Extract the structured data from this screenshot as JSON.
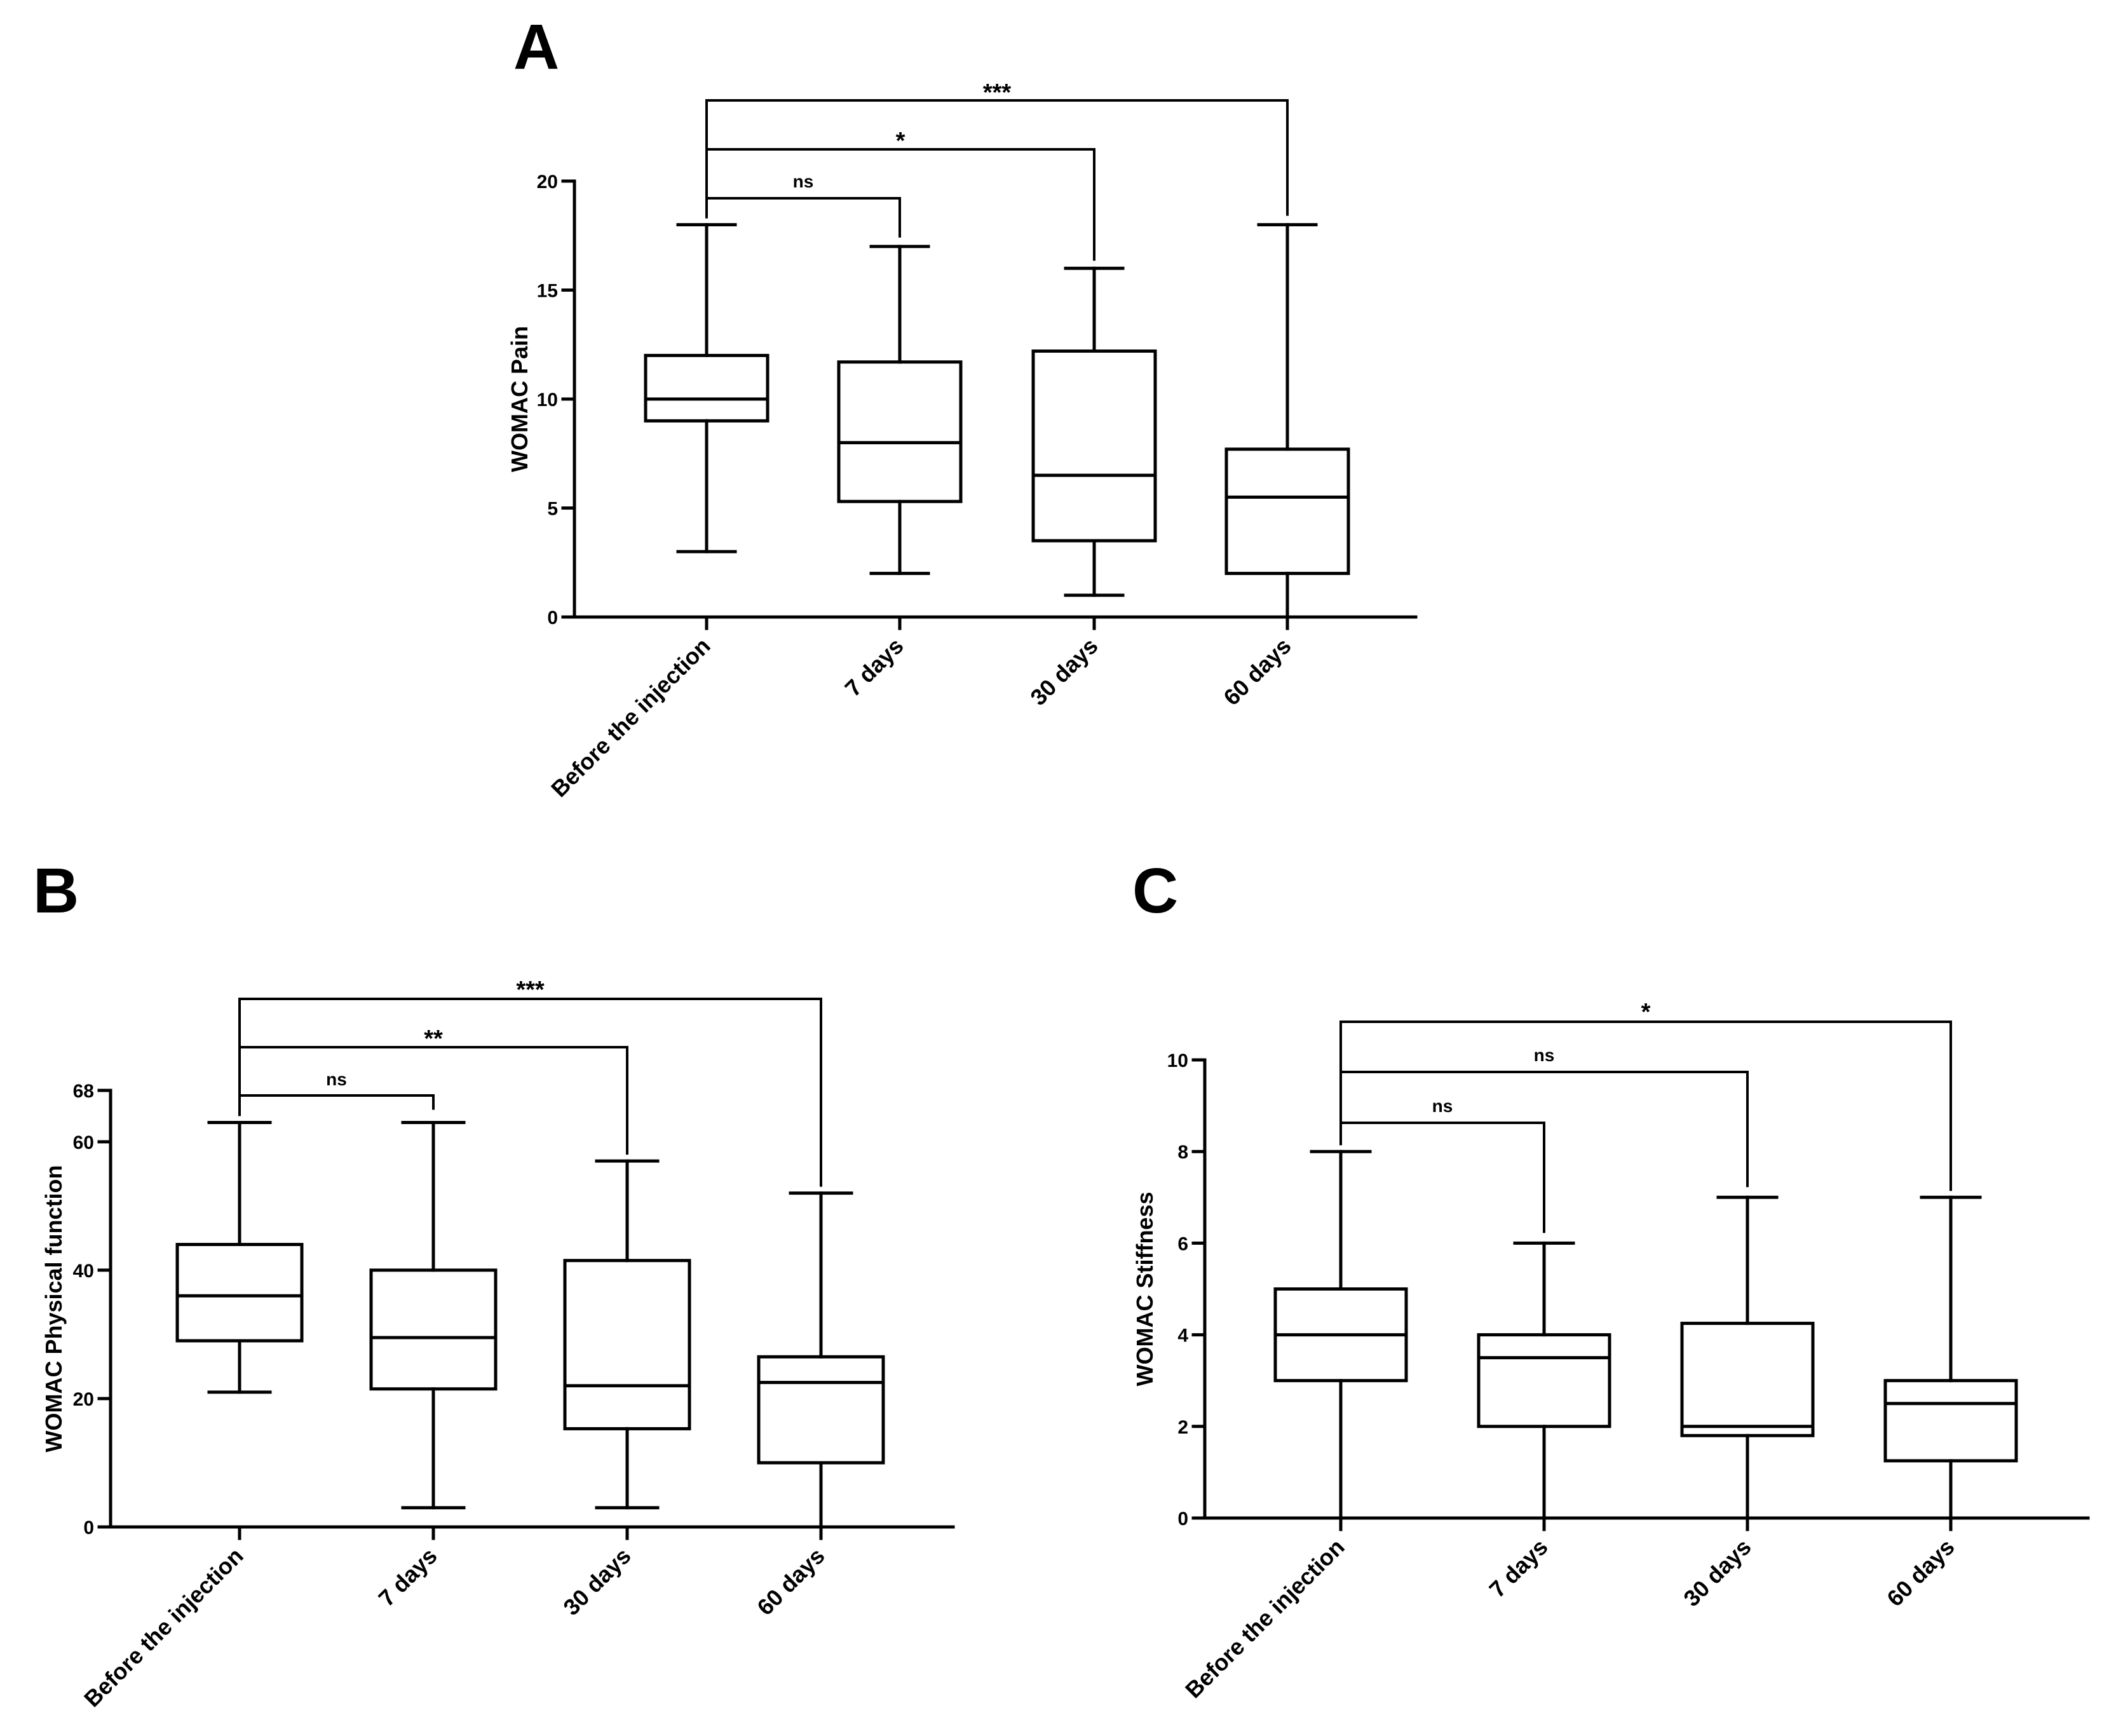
{
  "chart_data": [
    {
      "type": "box",
      "panel": "A",
      "title": "",
      "xlabel": "",
      "ylabel": "WOMAC Pain",
      "ylim": [
        0,
        20
      ],
      "yticks": [
        0,
        5,
        10,
        15,
        20
      ],
      "grid": false,
      "categories": [
        "Before the injection",
        "7 days",
        "30 days",
        "60 days"
      ],
      "boxes": [
        {
          "category": "Before the injection",
          "min": 3,
          "q1": 9,
          "median": 10,
          "q3": 12,
          "max": 18
        },
        {
          "category": "7 days",
          "min": 2,
          "q1": 5.3,
          "median": 8,
          "q3": 11.7,
          "max": 17
        },
        {
          "category": "30 days",
          "min": 1,
          "q1": 3.5,
          "median": 6.5,
          "q3": 12.2,
          "max": 16
        },
        {
          "category": "60 days",
          "min": 0,
          "q1": 2,
          "median": 5.5,
          "q3": 7.7,
          "max": 18
        }
      ],
      "comparisons": [
        {
          "from": "Before the injection",
          "to": "7 days",
          "label": "ns"
        },
        {
          "from": "Before the injection",
          "to": "30 days",
          "label": "*"
        },
        {
          "from": "Before the injection",
          "to": "60 days",
          "label": "***"
        }
      ]
    },
    {
      "type": "box",
      "panel": "B",
      "title": "",
      "xlabel": "",
      "ylabel": "WOMAC Physical function",
      "ylim": [
        0,
        68
      ],
      "yticks": [
        0,
        20,
        40,
        60,
        68
      ],
      "grid": false,
      "categories": [
        "Before the injection",
        "7 days",
        "30 days",
        "60 days"
      ],
      "boxes": [
        {
          "category": "Before the injection",
          "min": 21,
          "q1": 29,
          "median": 36,
          "q3": 44,
          "max": 63
        },
        {
          "category": "7 days",
          "min": 3,
          "q1": 21.5,
          "median": 29.5,
          "q3": 40,
          "max": 63
        },
        {
          "category": "30 days",
          "min": 3,
          "q1": 15.3,
          "median": 22,
          "q3": 41.5,
          "max": 57
        },
        {
          "category": "60 days",
          "min": 0,
          "q1": 10,
          "median": 22.5,
          "q3": 26.5,
          "max": 52
        }
      ],
      "comparisons": [
        {
          "from": "Before the injection",
          "to": "7 days",
          "label": "ns"
        },
        {
          "from": "Before the injection",
          "to": "30 days",
          "label": "**"
        },
        {
          "from": "Before the injection",
          "to": "60 days",
          "label": "***"
        }
      ]
    },
    {
      "type": "box",
      "panel": "C",
      "title": "",
      "xlabel": "",
      "ylabel": "WOMAC Stiffness",
      "ylim": [
        0,
        10
      ],
      "yticks": [
        0,
        2,
        4,
        6,
        8,
        10
      ],
      "grid": false,
      "categories": [
        "Before the injection",
        "7 days",
        "30 days",
        "60 days"
      ],
      "boxes": [
        {
          "category": "Before the injection",
          "min": 0,
          "q1": 3,
          "median": 4,
          "q3": 5,
          "max": 8
        },
        {
          "category": "7 days",
          "min": 0,
          "q1": 2,
          "median": 3.5,
          "q3": 4,
          "max": 6
        },
        {
          "category": "30 days",
          "min": 0,
          "q1": 1.8,
          "median": 2,
          "q3": 4.25,
          "max": 7
        },
        {
          "category": "60 days",
          "min": 0,
          "q1": 1.25,
          "median": 2.5,
          "q3": 3,
          "max": 7
        }
      ],
      "comparisons": [
        {
          "from": "Before the injection",
          "to": "7 days",
          "label": "ns"
        },
        {
          "from": "Before the injection",
          "to": "30 days",
          "label": "ns"
        },
        {
          "from": "Before the injection",
          "to": "60 days",
          "label": "*"
        }
      ]
    }
  ]
}
